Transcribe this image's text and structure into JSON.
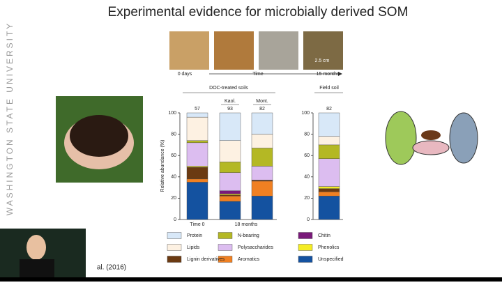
{
  "slide": {
    "title": "Experimental evidence for microbially derived SOM",
    "institution": "WASHINGTON STATE UNIVERSITY",
    "photo_labels": {
      "start": "0 days",
      "axis": "Time",
      "end": "15 months",
      "scale": "2.5 cm"
    },
    "citation": "al. (2016)"
  },
  "chart_data": {
    "type": "stacked-bar",
    "y_label": "Relative abundance (%)",
    "groups": [
      "DOC-treated soils",
      "Field soil"
    ],
    "period_labels": [
      "Time 0",
      "18 months"
    ],
    "categories": [
      null,
      "Kaol.",
      "Mont.",
      null
    ],
    "top_labels": [
      57,
      93,
      82,
      82
    ],
    "ylim": [
      0,
      100
    ],
    "yticks": [
      0,
      20,
      40,
      60,
      80,
      100
    ],
    "series": [
      {
        "name": "Unspecified",
        "color": "#1452a0",
        "values": [
          35,
          17,
          22,
          22
        ]
      },
      {
        "name": "Aromatics",
        "color": "#f08022",
        "values": [
          3,
          5,
          14,
          4
        ]
      },
      {
        "name": "Lignin derivatives",
        "color": "#6b3a12",
        "values": [
          11,
          1,
          1,
          3
        ]
      },
      {
        "name": "Phenolics",
        "color": "#f4ec24",
        "values": [
          1,
          1,
          0,
          2
        ]
      },
      {
        "name": "Chitin",
        "color": "#7a1a7a",
        "values": [
          0,
          3,
          0,
          0
        ]
      },
      {
        "name": "Polysaccharides",
        "color": "#dcbdf0",
        "values": [
          22,
          17,
          13,
          26
        ]
      },
      {
        "name": "N-bearing",
        "color": "#b4b824",
        "values": [
          2,
          10,
          17,
          13
        ]
      },
      {
        "name": "Lipids",
        "color": "#fdf1e2",
        "values": [
          22,
          20,
          13,
          8
        ]
      },
      {
        "name": "Protein",
        "color": "#d8e8f8",
        "values": [
          4,
          26,
          20,
          22
        ]
      }
    ]
  }
}
